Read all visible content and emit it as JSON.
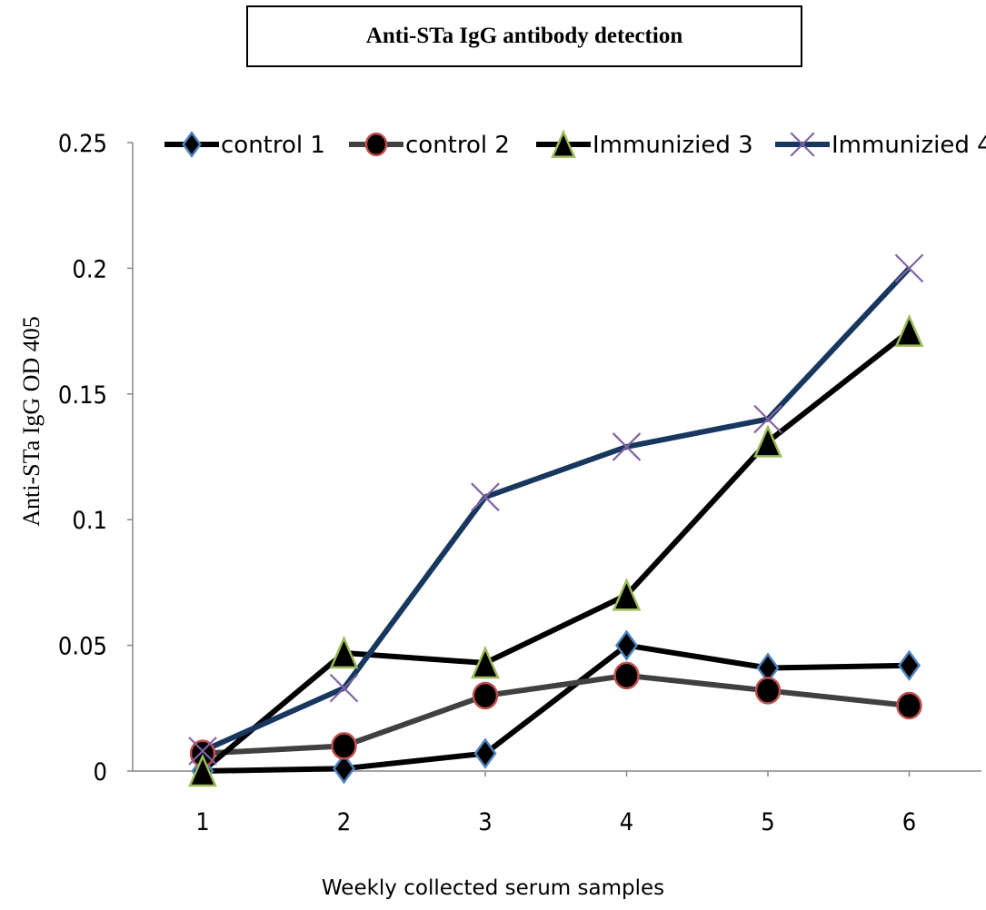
{
  "chart_data": {
    "type": "line",
    "title": "Anti-STa IgG antibody detection",
    "xlabel": "Weekly collected serum samples",
    "ylabel": "Anti-STa IgG OD 405",
    "categories": [
      "1",
      "2",
      "3",
      "4",
      "5",
      "6"
    ],
    "y_ticks": [
      "0",
      "0.05",
      "0.1",
      "0.15",
      "0.2",
      "0.25"
    ],
    "ylim": [
      0,
      0.25
    ],
    "grid": false,
    "legend_position": "top",
    "series": [
      {
        "name": "control 1",
        "marker": "diamond",
        "line_color": "#000000",
        "marker_fill": "#000000",
        "marker_stroke": "#4f81bd",
        "values": [
          0,
          0.001,
          0.007,
          0.05,
          0.041,
          0.042
        ]
      },
      {
        "name": "control 2",
        "marker": "circle",
        "line_color": "#404040",
        "marker_fill": "#000000",
        "marker_stroke": "#c0504d",
        "values": [
          0.007,
          0.01,
          0.03,
          0.038,
          0.032,
          0.026
        ]
      },
      {
        "name": "Immunizied 3",
        "marker": "triangle",
        "line_color": "#000000",
        "marker_fill": "#000000",
        "marker_stroke": "#9bbb59",
        "values": [
          0,
          0.047,
          0.043,
          0.07,
          0.131,
          0.175
        ]
      },
      {
        "name": "Immunizied 4",
        "marker": "x",
        "line_color": "#17375e",
        "marker_fill": "none",
        "marker_stroke": "#8064a2",
        "values": [
          0.008,
          0.033,
          0.109,
          0.129,
          0.14,
          0.2
        ]
      }
    ]
  }
}
